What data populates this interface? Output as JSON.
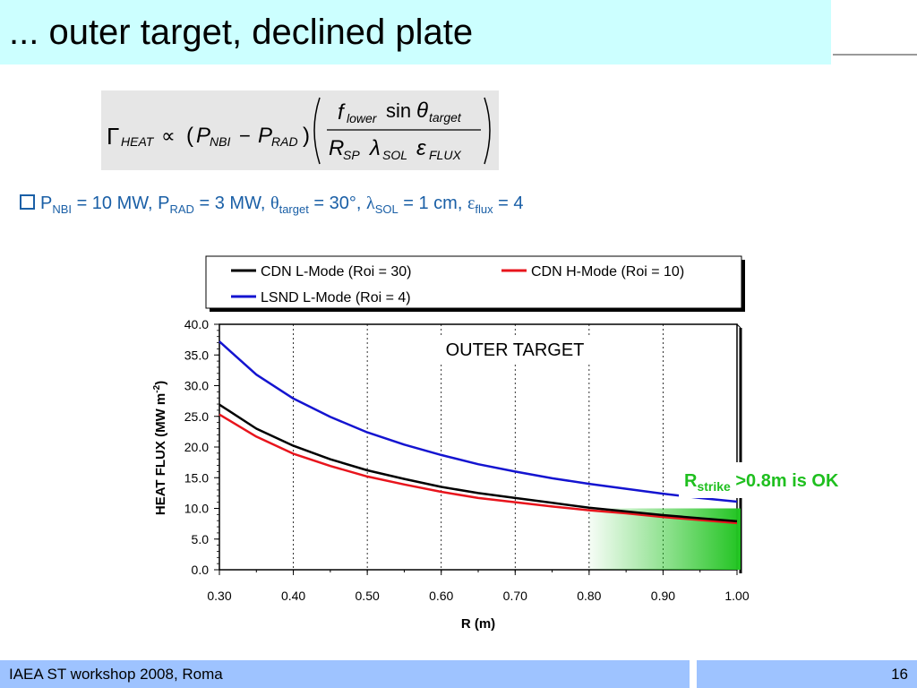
{
  "slide": {
    "title": "... outer target, declined plate",
    "footer": "IAEA ST workshop 2008, Roma",
    "page_number": "16"
  },
  "formula": {
    "lhs": "Γ",
    "lhs_sub": "HEAT",
    "prop": "∝",
    "p1": "P",
    "p1_sub": "NBI",
    "minus": "−",
    "p2": "P",
    "p2_sub": "RAD",
    "num_f": "f",
    "num_f_sub": "lower",
    "num_sin": "sin",
    "num_theta": "θ",
    "num_theta_sub": "target",
    "den_r": "R",
    "den_r_sub": "SP",
    "den_l": "λ",
    "den_l_sub": "SOL",
    "den_e": "ε",
    "den_e_sub": "FLUX"
  },
  "params": {
    "p": "P",
    "nbi_sub": "NBI",
    "nbi_val": " = 10 MW, P",
    "rad_sub": "RAD",
    "rad_val": " = 3 MW, ",
    "theta": "θ",
    "theta_sub": "target",
    "theta_val": " = 30°, ",
    "lambda": "λ",
    "lambda_sub": "SOL",
    "lambda_val": " = 1 cm, ",
    "eps": "ε",
    "eps_sub": "flux",
    "eps_val": " = 4"
  },
  "colors": {
    "cdn_l": "#000000",
    "cdn_h": "#e8141c",
    "lsnd_l": "#1414d0",
    "ok_green": "#1fbf1f",
    "shade_green": "#22c422"
  },
  "annotation": {
    "outer_target": "OUTER TARGET",
    "r": "R",
    "r_sub": "strike",
    "r_text": " >0.8m is OK"
  },
  "chart_data": {
    "type": "line",
    "title": "",
    "xlabel": "R (m)",
    "ylabel": "HEAT FLUX (MW m",
    "ylabel_sup": "-2",
    "ylabel_close": ")",
    "xlim": [
      0.3,
      1.0
    ],
    "ylim": [
      0,
      40
    ],
    "xticks": [
      "0.30",
      "0.40",
      "0.50",
      "0.60",
      "0.70",
      "0.80",
      "0.90",
      "1.00"
    ],
    "yticks": [
      "0.0",
      "5.0",
      "10.0",
      "15.0",
      "20.0",
      "25.0",
      "30.0",
      "35.0",
      "40.0"
    ],
    "grid": true,
    "legend_position": "top",
    "x": [
      0.3,
      0.35,
      0.4,
      0.45,
      0.5,
      0.55,
      0.6,
      0.65,
      0.7,
      0.75,
      0.8,
      0.85,
      0.9,
      0.95,
      1.0
    ],
    "series": [
      {
        "name": "CDN L-Mode (Roi = 30)",
        "color": "#000000",
        "values": [
          26.9,
          23.0,
          20.2,
          18.0,
          16.2,
          14.8,
          13.5,
          12.5,
          11.7,
          10.9,
          10.1,
          9.5,
          8.9,
          8.4,
          7.9
        ]
      },
      {
        "name": "CDN H-Mode (Roi = 10)",
        "color": "#e8141c",
        "values": [
          25.3,
          21.7,
          18.9,
          16.9,
          15.2,
          13.9,
          12.7,
          11.7,
          11.0,
          10.3,
          9.7,
          9.2,
          8.6,
          8.1,
          7.6
        ]
      },
      {
        "name": "LSND L-Mode (Roi = 4)",
        "color": "#1414d0",
        "values": [
          37.2,
          31.8,
          27.9,
          24.9,
          22.4,
          20.4,
          18.7,
          17.2,
          16.0,
          14.9,
          14.0,
          13.2,
          12.4,
          11.7,
          11.1
        ]
      }
    ],
    "shade_range": [
      0.8,
      1.0
    ],
    "shade_ymax": 10.0
  }
}
